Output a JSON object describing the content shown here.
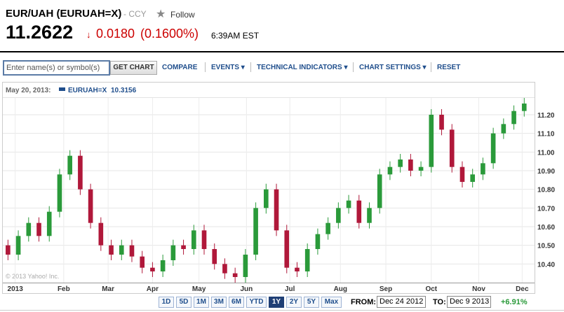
{
  "header": {
    "title": "EUR/UAH (EURUAH=X)",
    "exchange": "- CCY",
    "follow": "Follow",
    "price": "11.2622",
    "change": "0.0180",
    "change_percent": "(0.1600%)",
    "time": "6:39AM EST"
  },
  "toolbar": {
    "search_placeholder": "Enter name(s) or symbol(s)",
    "button": "GET CHART",
    "links": [
      "COMPARE",
      "EVENTS",
      "TECHNICAL INDICATORS",
      "CHART SETTINGS",
      "RESET"
    ]
  },
  "legend": {
    "date": "May 20, 2013:",
    "symbol": "EURUAH=X",
    "value": "10.3156"
  },
  "watermark": "© 2013 Yahoo! Inc.",
  "ranges": {
    "buttons": [
      "1D",
      "5D",
      "1M",
      "3M",
      "6M",
      "YTD",
      "1Y",
      "2Y",
      "5Y",
      "Max"
    ],
    "active": "1Y",
    "from_label": "FROM:",
    "from": "Dec 24 2012",
    "to_label": "TO:",
    "to": "Dec 9 2013",
    "change": "+6.91%"
  },
  "chart_data": {
    "type": "candlestick",
    "up_color": "#2a9a3a",
    "down_color": "#b0183a",
    "grid": true,
    "open": [
      10.5,
      10.45,
      10.55,
      10.62,
      10.55,
      10.68,
      10.88,
      10.98,
      10.8,
      10.62,
      10.5,
      10.45,
      10.5,
      10.44,
      10.38,
      10.36,
      10.42,
      10.5,
      10.48,
      10.58,
      10.48,
      10.4,
      10.35,
      10.33,
      10.45,
      10.7,
      10.8,
      10.58,
      10.38,
      10.36,
      10.48,
      10.56,
      10.62,
      10.7,
      10.74,
      10.62,
      10.7,
      10.88,
      10.92,
      10.96,
      10.9,
      10.92,
      11.2,
      11.12,
      10.92,
      10.84,
      10.88,
      10.94,
      11.1,
      11.15,
      11.22
    ],
    "high": [
      10.53,
      10.58,
      10.65,
      10.65,
      10.71,
      10.91,
      11.01,
      11.01,
      10.83,
      10.65,
      10.53,
      10.53,
      10.53,
      10.47,
      10.41,
      10.45,
      10.53,
      10.53,
      10.61,
      10.61,
      10.51,
      10.43,
      10.38,
      10.48,
      10.73,
      10.83,
      10.83,
      10.61,
      10.41,
      10.51,
      10.59,
      10.65,
      10.73,
      10.77,
      10.77,
      10.73,
      10.91,
      10.95,
      10.99,
      10.99,
      10.95,
      11.23,
      11.23,
      11.15,
      10.95,
      10.91,
      10.97,
      11.13,
      11.18,
      11.25,
      11.29
    ],
    "low": [
      10.42,
      10.42,
      10.52,
      10.52,
      10.52,
      10.65,
      10.85,
      10.77,
      10.59,
      10.47,
      10.42,
      10.42,
      10.41,
      10.35,
      10.33,
      10.33,
      10.39,
      10.45,
      10.45,
      10.45,
      10.37,
      10.32,
      10.3,
      10.3,
      10.42,
      10.67,
      10.55,
      10.35,
      10.33,
      10.33,
      10.45,
      10.53,
      10.59,
      10.67,
      10.59,
      10.59,
      10.67,
      10.85,
      10.89,
      10.87,
      10.87,
      10.89,
      11.09,
      10.89,
      10.81,
      10.81,
      10.85,
      10.91,
      11.07,
      11.12,
      11.19
    ],
    "close": [
      10.45,
      10.55,
      10.62,
      10.55,
      10.68,
      10.88,
      10.98,
      10.8,
      10.62,
      10.5,
      10.45,
      10.5,
      10.44,
      10.38,
      10.36,
      10.42,
      10.5,
      10.48,
      10.58,
      10.48,
      10.4,
      10.35,
      10.33,
      10.45,
      10.7,
      10.8,
      10.58,
      10.38,
      10.36,
      10.48,
      10.56,
      10.62,
      10.7,
      10.74,
      10.62,
      10.7,
      10.88,
      10.92,
      10.96,
      10.9,
      10.92,
      11.2,
      11.12,
      10.92,
      10.84,
      10.88,
      10.94,
      11.1,
      11.15,
      11.22,
      11.26
    ],
    "xlim": [
      -0.5,
      51
    ],
    "xticks": [
      {
        "value": 0.7,
        "label": "2013"
      },
      {
        "value": 5.4,
        "label": "Feb"
      },
      {
        "value": 9.7,
        "label": "Mar"
      },
      {
        "value": 14,
        "label": "Apr"
      },
      {
        "value": 18.5,
        "label": "May"
      },
      {
        "value": 23.1,
        "label": "Jun"
      },
      {
        "value": 27.3,
        "label": "Jul"
      },
      {
        "value": 32.2,
        "label": "Aug"
      },
      {
        "value": 36.6,
        "label": "Sep"
      },
      {
        "value": 41,
        "label": "Oct"
      },
      {
        "value": 45.6,
        "label": "Nov"
      },
      {
        "value": 49.8,
        "label": "Dec"
      }
    ],
    "ylim": [
      10.3,
      11.29
    ],
    "yticks": [
      {
        "value": 10.4,
        "label": "10.40"
      },
      {
        "value": 10.5,
        "label": "10.50"
      },
      {
        "value": 10.6,
        "label": "10.60"
      },
      {
        "value": 10.7,
        "label": "10.70"
      },
      {
        "value": 10.8,
        "label": "10.80"
      },
      {
        "value": 10.9,
        "label": "10.90"
      },
      {
        "value": 11.0,
        "label": "11.00"
      },
      {
        "value": 11.1,
        "label": "11.10"
      },
      {
        "value": 11.2,
        "label": "11.20"
      }
    ]
  }
}
